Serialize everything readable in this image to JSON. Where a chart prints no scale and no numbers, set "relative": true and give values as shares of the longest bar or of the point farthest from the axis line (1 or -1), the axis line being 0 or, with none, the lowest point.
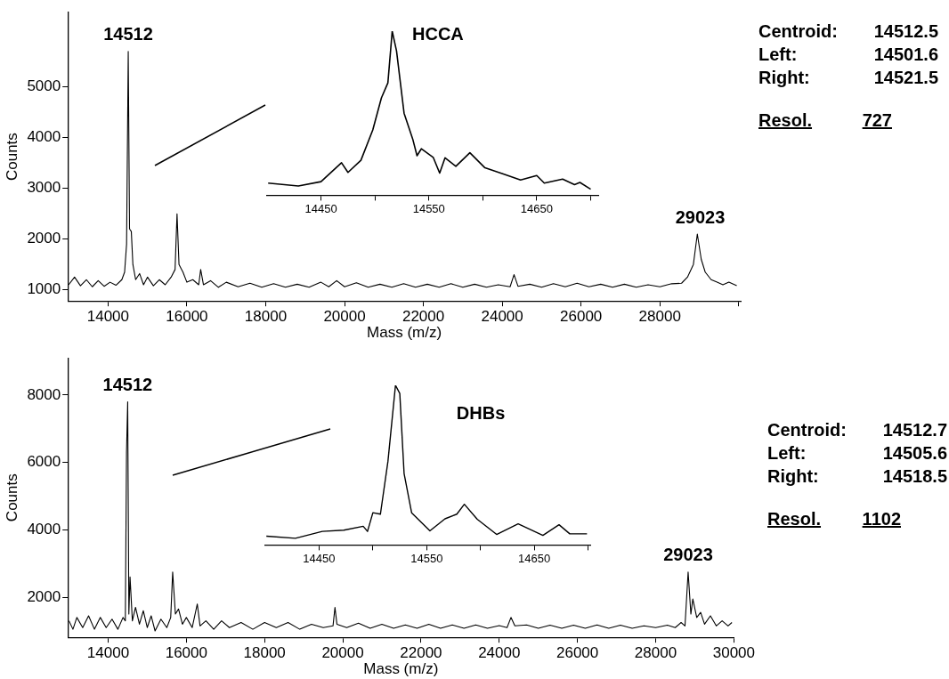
{
  "chart_data": [
    {
      "type": "line",
      "title": "HCCA",
      "xlabel": "Mass (m/z)",
      "ylabel": "Counts",
      "xlim": [
        12980,
        30050
      ],
      "ylim": [
        780,
        6470
      ],
      "xticks": [
        14000,
        16000,
        18000,
        20000,
        22000,
        24000,
        26000,
        28000,
        {
          "value": 30000,
          "label": null
        }
      ],
      "yticks": [
        1000,
        2000,
        3000,
        4000,
        5000
      ],
      "legend": false,
      "marker": "none",
      "series": [
        {
          "color": "#000000",
          "x": [
            13000,
            13150,
            13300,
            13450,
            13600,
            13750,
            13900,
            14050,
            14200,
            14350,
            14420,
            14470,
            14512,
            14545,
            14590,
            14630,
            14700,
            14800,
            14900,
            15000,
            15150,
            15300,
            15450,
            15600,
            15700,
            15750,
            15800,
            15900,
            16000,
            16150,
            16300,
            16350,
            16420,
            16600,
            16800,
            17000,
            17300,
            17600,
            17900,
            18200,
            18500,
            18800,
            19100,
            19400,
            19600,
            19800,
            20000,
            20300,
            20600,
            20900,
            21200,
            21500,
            21800,
            22100,
            22400,
            22700,
            23000,
            23300,
            23600,
            23900,
            24200,
            24300,
            24400,
            24700,
            25000,
            25300,
            25600,
            25900,
            26200,
            26500,
            26800,
            27100,
            27400,
            27700,
            28000,
            28300,
            28550,
            28700,
            28850,
            28950,
            29050,
            29150,
            29300,
            29450,
            29600,
            29750,
            29950
          ],
          "values": [
            1100,
            1250,
            1080,
            1200,
            1060,
            1180,
            1070,
            1150,
            1090,
            1200,
            1350,
            1900,
            5700,
            2200,
            2150,
            1500,
            1200,
            1320,
            1100,
            1250,
            1080,
            1200,
            1100,
            1250,
            1400,
            2500,
            1500,
            1350,
            1150,
            1200,
            1100,
            1400,
            1100,
            1180,
            1050,
            1150,
            1060,
            1130,
            1050,
            1120,
            1050,
            1110,
            1050,
            1150,
            1060,
            1180,
            1060,
            1140,
            1050,
            1110,
            1050,
            1120,
            1050,
            1110,
            1050,
            1120,
            1050,
            1110,
            1050,
            1100,
            1060,
            1300,
            1070,
            1110,
            1050,
            1120,
            1060,
            1130,
            1060,
            1110,
            1050,
            1110,
            1050,
            1100,
            1060,
            1120,
            1130,
            1250,
            1500,
            2100,
            1600,
            1350,
            1200,
            1150,
            1100,
            1150,
            1080
          ]
        }
      ],
      "annotations": [
        {
          "text": "14512",
          "x": 14512,
          "y": 5700
        },
        {
          "text": "29023",
          "x": 29023,
          "y": 2100
        },
        "Centroid: 14512.5",
        "Left: 14501.6",
        "Right: 14521.5",
        "Resol. 727"
      ]
    },
    {
      "type": "line",
      "relative": true,
      "xlim": [
        14400,
        14707
      ],
      "xticks": [
        14450,
        {
          "value": 14500,
          "label": null
        },
        14550,
        {
          "value": 14600,
          "label": null
        },
        14650,
        {
          "value": 14700,
          "label": null
        }
      ],
      "tick_labels": "x",
      "legend": false,
      "marker": "none",
      "series": [
        {
          "color": "#000000",
          "x": [
            14401,
            14429,
            14450,
            14469,
            14475,
            14487,
            14498,
            14506,
            14512,
            14516,
            14520,
            14527,
            14535,
            14539,
            14543,
            14554,
            14560,
            14565,
            14575,
            14588,
            14602,
            14619,
            14635,
            14650,
            14657,
            14674,
            14685,
            14690,
            14700
          ],
          "values": [
            0.074,
            0.056,
            0.083,
            0.198,
            0.139,
            0.213,
            0.398,
            0.593,
            0.685,
            1.0,
            0.88,
            0.5,
            0.343,
            0.241,
            0.283,
            0.231,
            0.135,
            0.228,
            0.176,
            0.259,
            0.167,
            0.13,
            0.093,
            0.12,
            0.074,
            0.098,
            0.065,
            0.078,
            0.037
          ]
        }
      ]
    },
    {
      "type": "line",
      "title": "DHBs",
      "xlabel": "Mass (m/z)",
      "ylabel": "Counts",
      "xlim": [
        12970,
        30000
      ],
      "ylim": [
        810,
        9100
      ],
      "xticks": [
        14000,
        16000,
        18000,
        20000,
        22000,
        24000,
        26000,
        28000,
        30000
      ],
      "yticks": [
        2000,
        4000,
        6000,
        8000
      ],
      "legend": false,
      "marker": "none",
      "series": [
        {
          "color": "#000000",
          "x": [
            13000,
            13100,
            13200,
            13350,
            13500,
            13650,
            13800,
            13950,
            14100,
            14250,
            14380,
            14440,
            14470,
            14500,
            14530,
            14560,
            14620,
            14700,
            14800,
            14900,
            15000,
            15100,
            15200,
            15350,
            15500,
            15600,
            15650,
            15720,
            15800,
            15900,
            16000,
            16150,
            16280,
            16350,
            16500,
            16700,
            16900,
            17100,
            17400,
            17700,
            18000,
            18300,
            18600,
            18900,
            19200,
            19500,
            19750,
            19800,
            19850,
            20100,
            20400,
            20700,
            21000,
            21300,
            21600,
            21900,
            22200,
            22500,
            22800,
            23100,
            23400,
            23700,
            24000,
            24200,
            24300,
            24400,
            24700,
            25000,
            25300,
            25600,
            25900,
            26200,
            26500,
            26800,
            27100,
            27400,
            27700,
            28000,
            28300,
            28500,
            28650,
            28750,
            28830,
            28900,
            28950,
            29050,
            29150,
            29250,
            29400,
            29550,
            29700,
            29850,
            29950
          ],
          "values": [
            1300,
            1050,
            1400,
            1100,
            1450,
            1050,
            1400,
            1100,
            1350,
            1050,
            1400,
            1300,
            6300,
            7800,
            1500,
            2600,
            1300,
            1700,
            1200,
            1600,
            1100,
            1450,
            1000,
            1350,
            1100,
            1400,
            2750,
            1500,
            1650,
            1200,
            1400,
            1100,
            1800,
            1150,
            1300,
            1050,
            1300,
            1100,
            1250,
            1050,
            1250,
            1100,
            1250,
            1050,
            1200,
            1100,
            1150,
            1700,
            1200,
            1100,
            1230,
            1080,
            1200,
            1080,
            1180,
            1080,
            1200,
            1080,
            1180,
            1080,
            1180,
            1080,
            1160,
            1100,
            1400,
            1150,
            1180,
            1080,
            1170,
            1080,
            1170,
            1080,
            1180,
            1080,
            1170,
            1080,
            1150,
            1100,
            1170,
            1100,
            1250,
            1150,
            2750,
            1500,
            1950,
            1400,
            1550,
            1200,
            1450,
            1150,
            1300,
            1150,
            1250
          ]
        }
      ],
      "annotations": [
        {
          "text": "14512",
          "x": 14500,
          "y": 7800
        },
        {
          "text": "29023",
          "x": 28830,
          "y": 2750
        },
        "Centroid: 14512.7",
        "Left: 14505.6",
        "Right: 14518.5",
        "Resol. 1102"
      ]
    },
    {
      "type": "line",
      "relative": true,
      "xlim": [
        14400,
        14702
      ],
      "xticks": [
        14450,
        {
          "value": 14500,
          "label": null
        },
        14550,
        {
          "value": 14600,
          "label": null
        },
        14650,
        {
          "value": 14700,
          "label": null
        }
      ],
      "tick_labels": "x",
      "legend": false,
      "marker": "none",
      "series": [
        {
          "color": "#000000",
          "x": [
            14401,
            14428,
            14453,
            14473,
            14491,
            14495,
            14500,
            14507,
            14514,
            14521,
            14525,
            14529,
            14536,
            14553,
            14567,
            14578,
            14585,
            14597,
            14615,
            14635,
            14658,
            14673,
            14683,
            14699
          ],
          "values": [
            0.055,
            0.042,
            0.085,
            0.093,
            0.117,
            0.085,
            0.202,
            0.193,
            0.524,
            1.0,
            0.949,
            0.448,
            0.202,
            0.089,
            0.164,
            0.193,
            0.255,
            0.161,
            0.066,
            0.132,
            0.06,
            0.127,
            0.07,
            0.07
          ]
        }
      ]
    }
  ]
}
